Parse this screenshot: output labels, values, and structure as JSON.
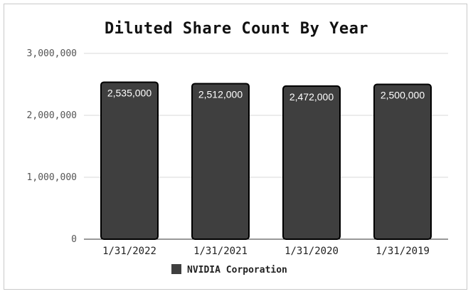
{
  "chart_data": {
    "type": "bar",
    "title": "Diluted Share Count By Year",
    "categories": [
      "1/31/2022",
      "1/31/2021",
      "1/31/2020",
      "1/31/2019"
    ],
    "series": [
      {
        "name": "NVIDIA Corporation",
        "values": [
          2535000,
          2512000,
          2472000,
          2500000
        ]
      }
    ],
    "data_labels": [
      "2,535,000",
      "2,512,000",
      "2,472,000",
      "2,500,000"
    ],
    "y_ticks": [
      "0",
      "1,000,000",
      "2,000,000",
      "3,000,000"
    ],
    "ylim": [
      0,
      3000000
    ],
    "grid": true,
    "legend_position": "bottom",
    "colors": {
      "bar": "#3f3f3f",
      "bar_stroke": "#000000",
      "grid": "#d9d9d9"
    }
  }
}
